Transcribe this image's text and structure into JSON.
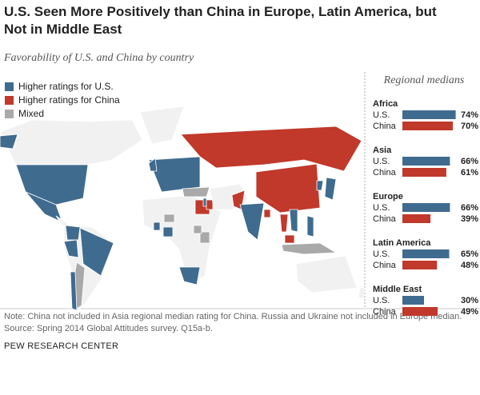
{
  "title": "U.S. Seen More Positively than China in Europe, Latin America, but Not in Middle East",
  "subtitle": "Favorability of U.S. and China by country",
  "chart_data": [
    {
      "type": "map",
      "legend": [
        {
          "name": "Higher ratings for U.S.",
          "color": "#3f6b8f"
        },
        {
          "name": "Higher ratings for China",
          "color": "#c0392b"
        },
        {
          "name": "Mixed",
          "color": "#a9a9a9"
        }
      ],
      "land_color": "#f1f1f1"
    },
    {
      "type": "bar",
      "title": "Regional medians",
      "categories": [
        "Africa",
        "Asia",
        "Europe",
        "Latin America",
        "Middle East"
      ],
      "series": [
        {
          "name": "U.S.",
          "color": "#3f6b8f",
          "values": [
            74,
            66,
            66,
            65,
            30
          ],
          "value_labels": [
            "74%",
            "66%",
            "66%",
            "65%",
            "30%"
          ]
        },
        {
          "name": "China",
          "color": "#c0392b",
          "values": [
            70,
            61,
            39,
            48,
            49
          ],
          "value_labels": [
            "70%",
            "61%",
            "39%",
            "48%",
            "49%"
          ]
        }
      ]
    }
  ],
  "note": "Note: China not included in Asia regional median rating for China. Russia and Ukraine not included in Europe median.",
  "source": "Source: Spring 2014 Global Attitudes survey. Q15a-b.",
  "footer": "PEW RESEARCH CENTER"
}
